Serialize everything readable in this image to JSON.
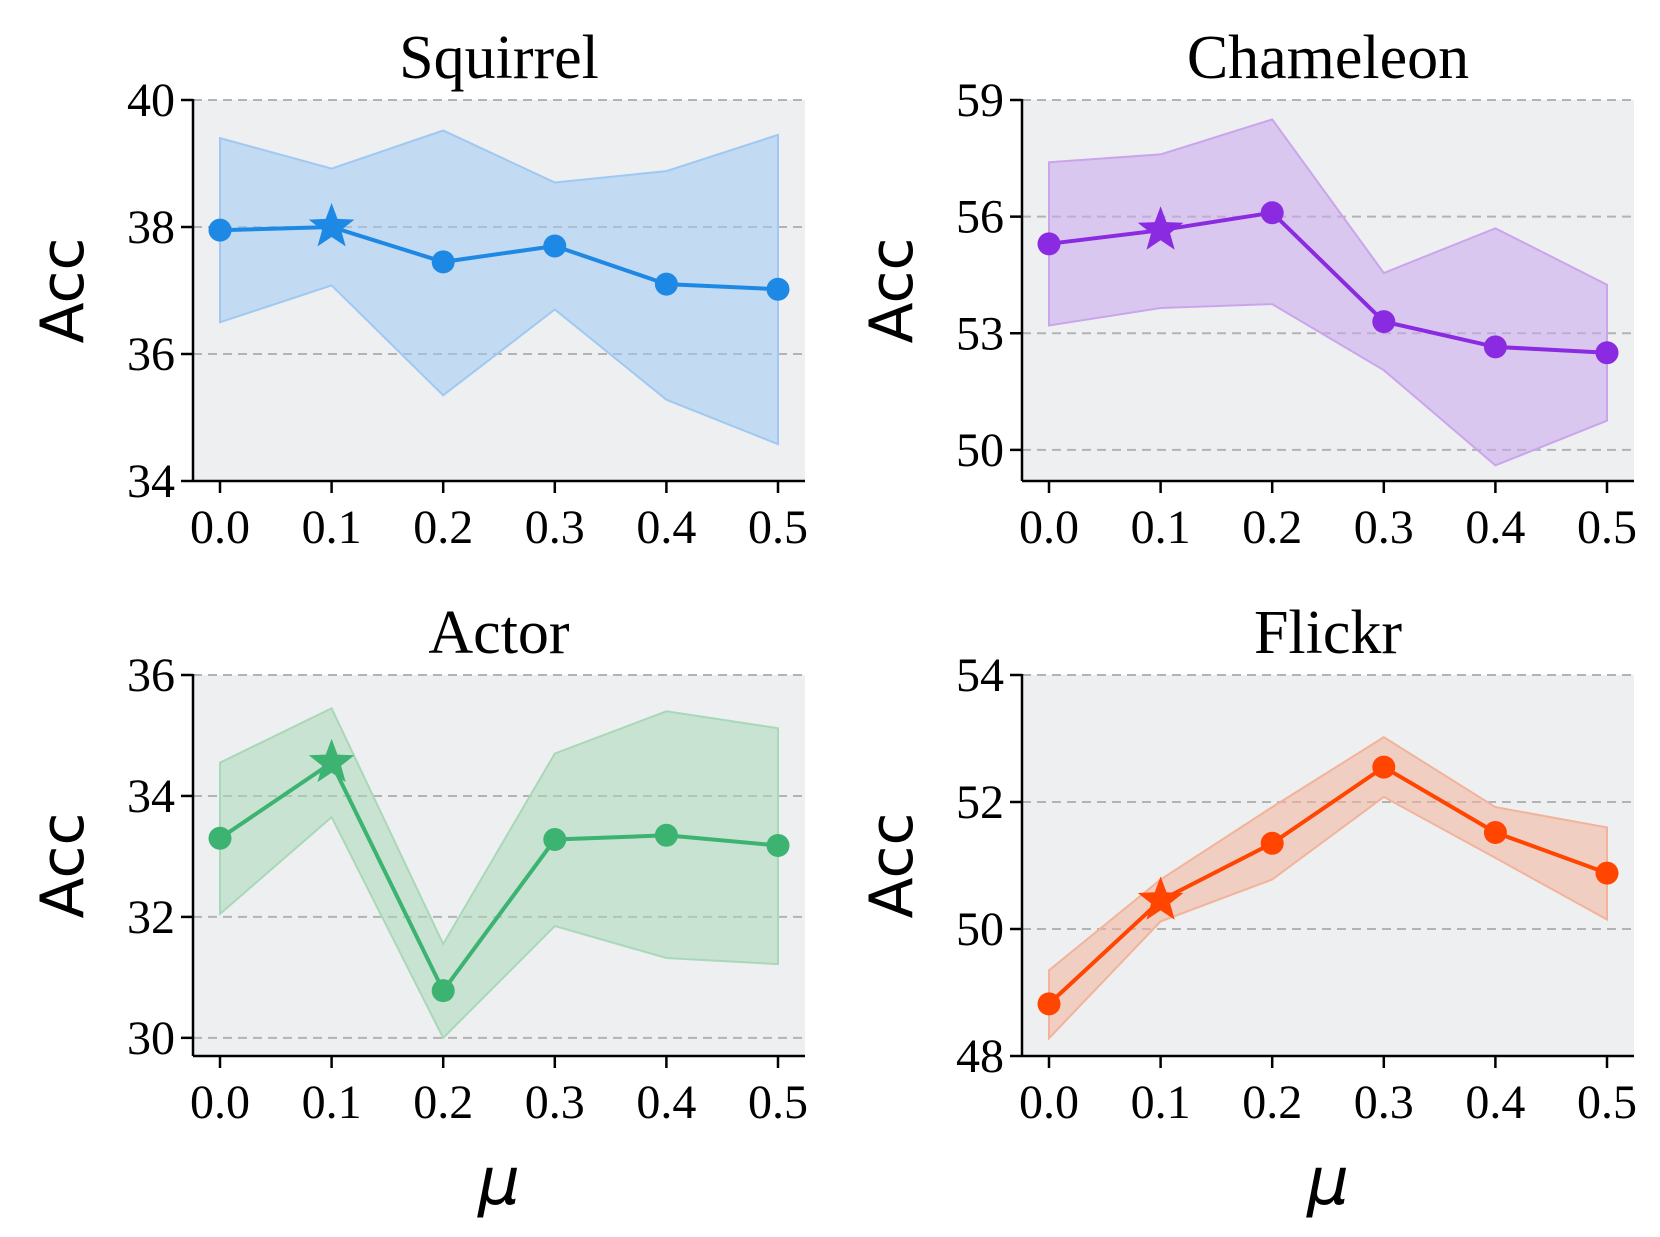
{
  "chart_data": [
    {
      "type": "line",
      "title": "Squirrel",
      "xlabel": "",
      "ylabel": "Acc",
      "x": [
        0.0,
        0.1,
        0.2,
        0.3,
        0.4,
        0.5
      ],
      "xtick_labels": [
        "0.0",
        "0.1",
        "0.2",
        "0.3",
        "0.4",
        "0.5"
      ],
      "ylim": [
        34,
        40
      ],
      "yticks": [
        34,
        36,
        38,
        40
      ],
      "ytick_labels": [
        "34",
        "36",
        "38",
        "40"
      ],
      "grid": "y-dashed",
      "color": "#1e88e5",
      "fill_color": "#9fc9f3",
      "series": [
        {
          "values": [
            37.95,
            38.0,
            37.45,
            37.7,
            37.1,
            37.02
          ],
          "upper": [
            39.4,
            38.92,
            39.52,
            38.7,
            38.88,
            39.45
          ],
          "lower": [
            36.5,
            37.08,
            35.35,
            36.7,
            35.28,
            34.58
          ],
          "best_index": 1
        }
      ]
    },
    {
      "type": "line",
      "title": "Chameleon",
      "xlabel": "",
      "ylabel": "Acc",
      "x": [
        0.0,
        0.1,
        0.2,
        0.3,
        0.4,
        0.5
      ],
      "xtick_labels": [
        "0.0",
        "0.1",
        "0.2",
        "0.3",
        "0.4",
        "0.5"
      ],
      "ylim": [
        49.2,
        59
      ],
      "yticks": [
        50,
        53,
        56,
        59
      ],
      "ytick_labels": [
        "50",
        "53",
        "56",
        "59"
      ],
      "grid": "y-dashed",
      "color": "#8a2be2",
      "fill_color": "#caa5ec",
      "series": [
        {
          "values": [
            55.3,
            55.65,
            56.1,
            53.3,
            52.65,
            52.5
          ],
          "upper": [
            57.4,
            57.6,
            58.5,
            54.55,
            55.7,
            54.25
          ],
          "lower": [
            53.2,
            53.65,
            53.75,
            52.05,
            49.6,
            50.75
          ],
          "best_index": 1
        }
      ]
    },
    {
      "type": "line",
      "title": "Actor",
      "xlabel": "μ",
      "ylabel": "Acc",
      "x": [
        0.0,
        0.1,
        0.2,
        0.3,
        0.4,
        0.5
      ],
      "xtick_labels": [
        "0.0",
        "0.1",
        "0.2",
        "0.3",
        "0.4",
        "0.5"
      ],
      "ylim": [
        29.7,
        36
      ],
      "yticks": [
        30,
        32,
        34,
        36
      ],
      "ytick_labels": [
        "30",
        "32",
        "34",
        "36"
      ],
      "grid": "y-dashed",
      "color": "#3cb371",
      "fill_color": "#a9d8b8",
      "series": [
        {
          "values": [
            33.3,
            34.55,
            30.78,
            33.28,
            33.35,
            33.18
          ],
          "upper": [
            34.55,
            35.45,
            31.55,
            34.7,
            35.4,
            35.12
          ],
          "lower": [
            32.05,
            33.65,
            30.0,
            31.85,
            31.32,
            31.22
          ],
          "best_index": 1
        }
      ]
    },
    {
      "type": "line",
      "title": "Flickr",
      "xlabel": "μ",
      "ylabel": "Acc",
      "x": [
        0.0,
        0.1,
        0.2,
        0.3,
        0.4,
        0.5
      ],
      "xtick_labels": [
        "0.0",
        "0.1",
        "0.2",
        "0.3",
        "0.4",
        "0.5"
      ],
      "ylim": [
        48,
        54
      ],
      "yticks": [
        48,
        50,
        52,
        54
      ],
      "ytick_labels": [
        "48",
        "50",
        "52",
        "54"
      ],
      "grid": "y-dashed",
      "color": "#ff4500",
      "fill_color": "#f3b39a",
      "series": [
        {
          "values": [
            48.82,
            50.45,
            51.35,
            52.55,
            51.52,
            50.88
          ],
          "upper": [
            49.35,
            50.78,
            51.92,
            53.02,
            51.92,
            51.6
          ],
          "lower": [
            48.28,
            50.12,
            50.78,
            52.08,
            51.12,
            50.15
          ],
          "best_index": 1
        }
      ]
    }
  ]
}
